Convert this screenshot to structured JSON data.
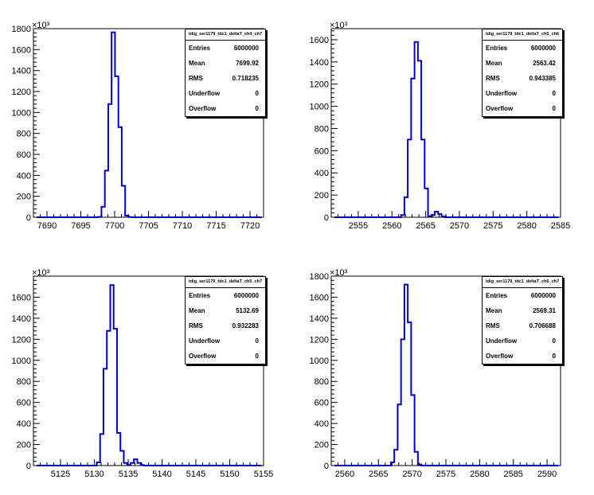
{
  "colors": {
    "histogram_line": "#0000cc",
    "axis": "#000000",
    "background": "#ffffff"
  },
  "chart_data": [
    {
      "type": "bar",
      "histogram_name": "tdig_ser1179_tdc1_deltaT_ch4_ch7",
      "xlim": [
        7688,
        7722
      ],
      "ylim": [
        0,
        1800
      ],
      "y_multiplier_label": "×10³",
      "x_ticks": [
        7690,
        7695,
        7700,
        7705,
        7710,
        7715,
        7720
      ],
      "y_ticks": [
        0,
        200,
        400,
        600,
        800,
        1000,
        1200,
        1400,
        1600,
        1800
      ],
      "y_tick_labels": [
        "0",
        "200",
        "400",
        "600",
        "800",
        "1000",
        "1200",
        "1400",
        "1600",
        "1800"
      ],
      "bin_centers": [
        7697.8,
        7698.3,
        7698.8,
        7699.3,
        7699.8,
        7700.3,
        7700.8,
        7701.3,
        7701.8,
        7702.3
      ],
      "values": [
        3,
        100,
        445,
        1080,
        1765,
        1345,
        860,
        300,
        15,
        2
      ],
      "stats": [
        {
          "label": "Entries",
          "value": "6000000"
        },
        {
          "label": "Mean",
          "value": "7699.92"
        },
        {
          "label": "RMS",
          "value": "0.718235"
        },
        {
          "label": "Underflow",
          "value": "0"
        },
        {
          "label": "Overflow",
          "value": "0"
        }
      ]
    },
    {
      "type": "bar",
      "histogram_name": "tdig_ser1179_tdc1_deltaT_ch5_ch6",
      "xlim": [
        2551,
        2585
      ],
      "ylim": [
        0,
        1700
      ],
      "y_multiplier_label": "×10³",
      "x_ticks": [
        2555,
        2560,
        2565,
        2570,
        2575,
        2580,
        2585
      ],
      "y_ticks": [
        0,
        200,
        400,
        600,
        800,
        1000,
        1200,
        1400,
        1600
      ],
      "y_tick_labels": [
        "0",
        "200",
        "400",
        "600",
        "800",
        "1000",
        "1200",
        "1400",
        "1600"
      ],
      "bin_centers": [
        2561.6,
        2562.1,
        2562.6,
        2563.1,
        2563.6,
        2564.1,
        2564.6,
        2565.1,
        2565.6,
        2566.1,
        2566.6,
        2567.1,
        2567.6
      ],
      "values": [
        20,
        180,
        700,
        1250,
        1580,
        1410,
        700,
        260,
        10,
        20,
        50,
        30,
        8
      ],
      "stats": [
        {
          "label": "Entries",
          "value": "6000000"
        },
        {
          "label": "Mean",
          "value": "2563.42"
        },
        {
          "label": "RMS",
          "value": "0.943385"
        },
        {
          "label": "Underflow",
          "value": "0"
        },
        {
          "label": "Overflow",
          "value": "0"
        }
      ]
    },
    {
      "type": "bar",
      "histogram_name": "tdig_ser1179_tdc1_deltaT_ch5_ch7",
      "xlim": [
        5121,
        5155
      ],
      "ylim": [
        0,
        1800
      ],
      "y_multiplier_label": "×10³",
      "x_ticks": [
        5125,
        5130,
        5135,
        5140,
        5145,
        5150,
        5155
      ],
      "y_ticks": [
        0,
        200,
        400,
        600,
        800,
        1000,
        1200,
        1400,
        1600
      ],
      "y_tick_labels": [
        "0",
        "200",
        "400",
        "600",
        "800",
        "1000",
        "1200",
        "1400",
        "1600"
      ],
      "bin_centers": [
        5130.6,
        5131.1,
        5131.6,
        5132.1,
        5132.6,
        5133.1,
        5133.6,
        5134.1,
        5134.6,
        5135.1,
        5135.6,
        5136.1,
        5136.6,
        5137.1
      ],
      "values": [
        30,
        300,
        920,
        1280,
        1715,
        1300,
        310,
        140,
        25,
        5,
        25,
        60,
        25,
        5
      ],
      "stats": [
        {
          "label": "Entries",
          "value": "6000000"
        },
        {
          "label": "Mean",
          "value": "5132.69"
        },
        {
          "label": "RMS",
          "value": "0.932283"
        },
        {
          "label": "Underflow",
          "value": "0"
        },
        {
          "label": "Overflow",
          "value": "0"
        }
      ]
    },
    {
      "type": "bar",
      "histogram_name": "tdig_ser1179_tdc1_deltaT_ch6_ch7",
      "xlim": [
        2558,
        2592
      ],
      "ylim": [
        0,
        1800
      ],
      "y_multiplier_label": "×10³",
      "x_ticks": [
        2560,
        2565,
        2570,
        2575,
        2580,
        2585,
        2590
      ],
      "y_ticks": [
        0,
        200,
        400,
        600,
        800,
        1000,
        1200,
        1400,
        1600,
        1800
      ],
      "y_tick_labels": [
        "0",
        "200",
        "400",
        "600",
        "800",
        "1000",
        "1200",
        "1400",
        "1600",
        "1800"
      ],
      "bin_centers": [
        2567.1,
        2567.6,
        2568.1,
        2568.6,
        2569.1,
        2569.6,
        2570.1,
        2570.6,
        2571.1
      ],
      "values": [
        30,
        150,
        580,
        1200,
        1720,
        1360,
        670,
        130,
        10
      ],
      "stats": [
        {
          "label": "Entries",
          "value": "6000000"
        },
        {
          "label": "Mean",
          "value": "2569.31"
        },
        {
          "label": "RMS",
          "value": "0.706688"
        },
        {
          "label": "Underflow",
          "value": "0"
        },
        {
          "label": "Overflow",
          "value": "0"
        }
      ]
    }
  ]
}
